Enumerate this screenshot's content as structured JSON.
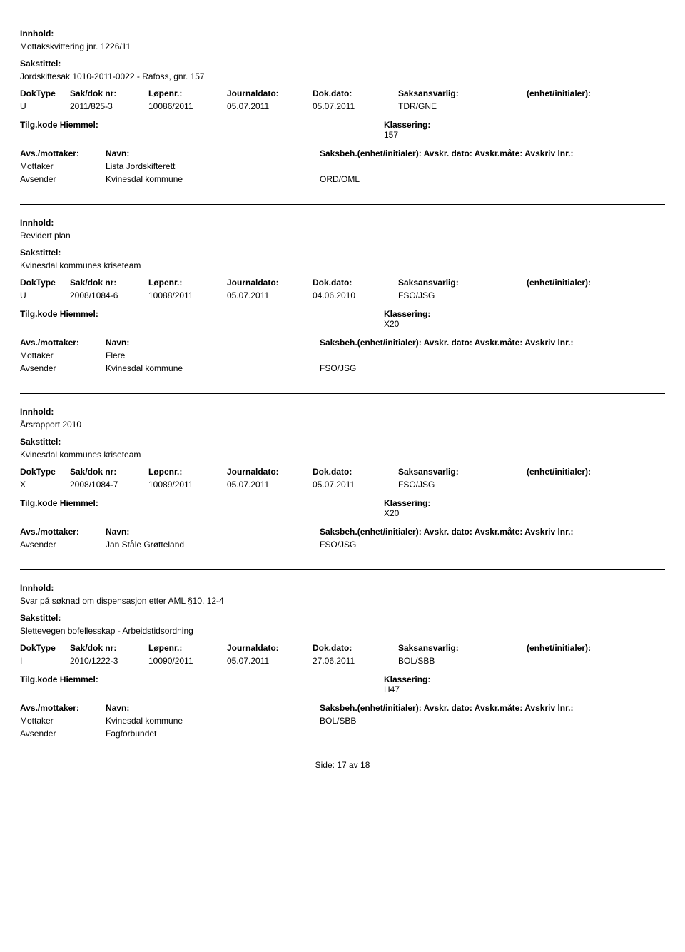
{
  "labels": {
    "innhold": "Innhold:",
    "sakstittel": "Sakstittel:",
    "doktype": "DokType",
    "saknr": "Sak/dok nr:",
    "lopenr": "Løpenr.:",
    "journaldato": "Journaldato:",
    "dokdato": "Dok.dato:",
    "saksansvarlig": "Saksansvarlig:",
    "enhet": "(enhet/initialer):",
    "tilgkode": "Tilg.kode",
    "hjemmel": "Hiemmel:",
    "klassering": "Klassering:",
    "avs_mottaker": "Avs./mottaker:",
    "navn": "Navn:",
    "saksbeh_line": "Saksbeh.(enhet/initialer): Avskr. dato:  Avskr.måte: Avskriv lnr.:",
    "mottaker": "Mottaker",
    "avsender": "Avsender",
    "side": "Side:",
    "av": "av"
  },
  "entries": [
    {
      "innhold": "Mottakskvittering jnr. 1226/11",
      "sakstittel": "Jordskiftesak 1010-2011-0022 - Rafoss, gnr. 157",
      "doktype": "U",
      "saknr": "2011/825-3",
      "lopenr": "10086/2011",
      "journaldato": "05.07.2011",
      "dokdato": "05.07.2011",
      "saksansvarlig": "TDR/GNE",
      "klassering": "157",
      "parties": [
        {
          "role": "Mottaker",
          "navn": "Lista Jordskifterett",
          "saksbeh": ""
        },
        {
          "role": "Avsender",
          "navn": "Kvinesdal kommune",
          "saksbeh": "ORD/OML"
        }
      ]
    },
    {
      "innhold": "Revidert plan",
      "sakstittel": "Kvinesdal kommunes kriseteam",
      "doktype": "U",
      "saknr": "2008/1084-6",
      "lopenr": "10088/2011",
      "journaldato": "05.07.2011",
      "dokdato": "04.06.2010",
      "saksansvarlig": "FSO/JSG",
      "klassering": "X20",
      "parties": [
        {
          "role": "Mottaker",
          "navn": "Flere",
          "saksbeh": ""
        },
        {
          "role": "Avsender",
          "navn": "Kvinesdal kommune",
          "saksbeh": "FSO/JSG"
        }
      ]
    },
    {
      "innhold": "Årsrapport 2010",
      "sakstittel": "Kvinesdal kommunes kriseteam",
      "doktype": "X",
      "saknr": "2008/1084-7",
      "lopenr": "10089/2011",
      "journaldato": "05.07.2011",
      "dokdato": "05.07.2011",
      "saksansvarlig": "FSO/JSG",
      "klassering": "X20",
      "parties": [
        {
          "role": "Avsender",
          "navn": "Jan Ståle Grøtteland",
          "saksbeh": "FSO/JSG"
        }
      ]
    },
    {
      "innhold": "Svar på søknad om dispensasjon etter AML §10, 12-4",
      "sakstittel": "Slettevegen bofellesskap - Arbeidstidsordning",
      "doktype": "I",
      "saknr": "2010/1222-3",
      "lopenr": "10090/2011",
      "journaldato": "05.07.2011",
      "dokdato": "27.06.2011",
      "saksansvarlig": "BOL/SBB",
      "klassering": "H47",
      "parties": [
        {
          "role": "Mottaker",
          "navn": "Kvinesdal kommune",
          "saksbeh": "BOL/SBB"
        },
        {
          "role": "Avsender",
          "navn": "Fagforbundet",
          "saksbeh": ""
        }
      ]
    }
  ],
  "footer": {
    "page": "17",
    "total": "18"
  }
}
